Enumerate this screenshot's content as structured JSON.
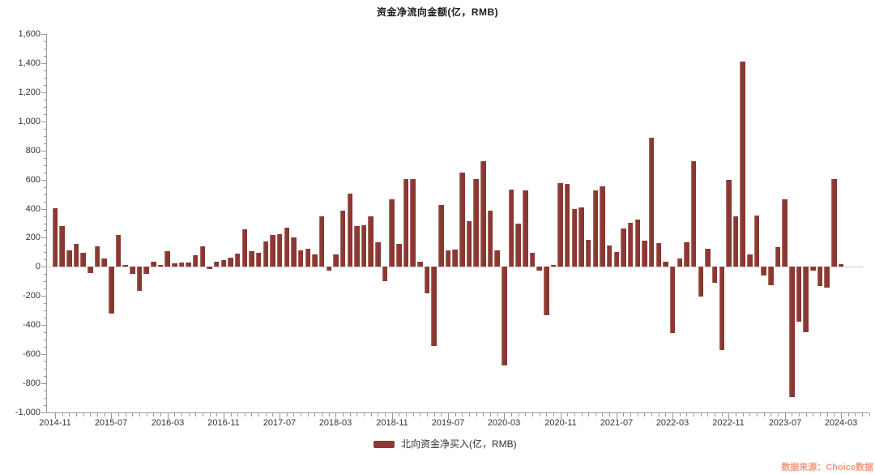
{
  "title": "资金净流向金额(亿，RMB)",
  "watermark": "数据来源：Choice数据",
  "legend": {
    "label": "北向资金净买入(亿，RMB)",
    "swatch_color": "#8C3B34"
  },
  "colors": {
    "bar": "#8C3B34",
    "bar_highlight": "#BD837B",
    "bar_shade": "#86362F",
    "axis": "#999999",
    "tick": "#999999",
    "label": "#333333",
    "zero_line": "#CCCCCC",
    "title": "#1A1A1A",
    "watermark": "#F39B7D",
    "background": "#FFFFFF"
  },
  "chart_data": {
    "type": "bar",
    "title": "资金净流向金额(亿，RMB)",
    "xlabel": "",
    "ylabel": "",
    "ylim": [
      -1000,
      1600
    ],
    "y_tick_step": 200,
    "y_minor_step": 50,
    "grid": "off",
    "legend_position": "bottom-center",
    "legend_entries": [
      "北向资金净买入(亿，RMB)"
    ],
    "x_tick_labels": [
      "2014-11",
      "2015-07",
      "2016-03",
      "2016-11",
      "2017-07",
      "2018-03",
      "2018-11",
      "2019-07",
      "2020-03",
      "2020-11",
      "2021-07",
      "2022-03",
      "2022-11",
      "2023-07",
      "2024-03"
    ],
    "x_label_every": 8,
    "x_start": "2014-11",
    "x_end": "2024-03",
    "y_tick_labels": [
      "1,600",
      "1,400",
      "1,200",
      "1,000",
      "800",
      "600",
      "400",
      "200",
      "0",
      "-200",
      "-400",
      "-600",
      "-800",
      "-1,000"
    ],
    "series": [
      {
        "name": "北向资金净买入(亿，RMB)",
        "values": [
          405,
          280,
          112,
          159,
          97,
          -43,
          140,
          56,
          -323,
          218,
          15,
          -47,
          -164,
          -47,
          37,
          13,
          106,
          22,
          28,
          30,
          80,
          144,
          -13,
          35,
          47,
          63,
          93,
          256,
          110,
          97,
          175,
          222,
          226,
          269,
          205,
          116,
          125,
          84,
          349,
          -24,
          88,
          385,
          506,
          282,
          286,
          347,
          168,
          -99,
          463,
          159,
          603,
          604,
          37,
          -181,
          -541,
          424,
          116,
          121,
          646,
          314,
          605,
          728,
          385,
          112,
          -679,
          532,
          297,
          527,
          99,
          -28,
          -330,
          15,
          577,
          568,
          398,
          409,
          185,
          524,
          551,
          149,
          105,
          265,
          302,
          327,
          183,
          889,
          164,
          37,
          -454,
          60,
          168,
          728,
          -205,
          125,
          -112,
          -573,
          600,
          348,
          1413,
          85,
          351,
          -60,
          -125,
          134,
          463,
          -895,
          -379,
          -448,
          -24,
          -131,
          -144,
          603,
          19
        ]
      }
    ]
  }
}
